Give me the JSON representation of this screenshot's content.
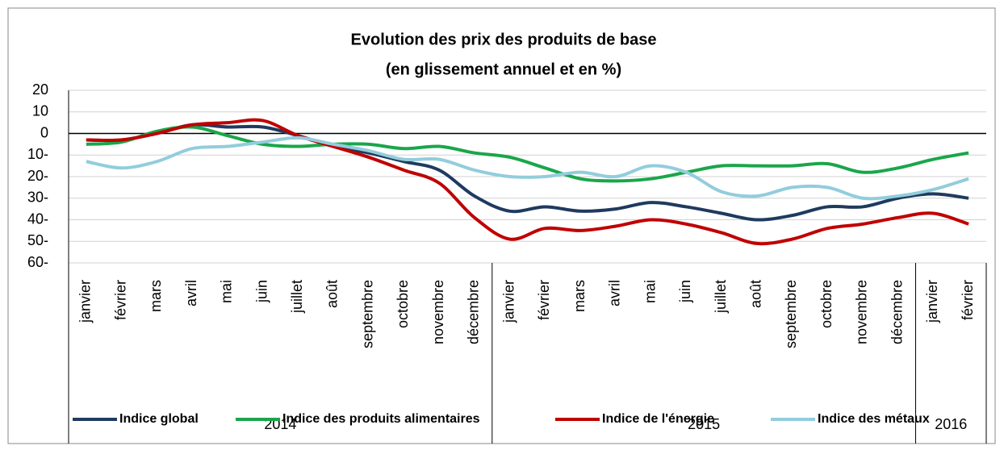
{
  "chart_data": {
    "type": "line",
    "title": "Evolution des prix des produits de base",
    "subtitle": "(en glissement annuel et en %)",
    "categories": [
      "janvier",
      "février",
      "mars",
      "avril",
      "mai",
      "juin",
      "juillet",
      "août",
      "septembre",
      "octobre",
      "novembre",
      "décembre",
      "janvier",
      "février",
      "mars",
      "avril",
      "mai",
      "juin",
      "juillet",
      "août",
      "septembre",
      "octobre",
      "novembre",
      "décembre",
      "janvier",
      "février"
    ],
    "x_groups": [
      {
        "label": "2014",
        "span": 12
      },
      {
        "label": "2015",
        "span": 12
      },
      {
        "label": "2016",
        "span": 2
      }
    ],
    "series": [
      {
        "name": "Indice global",
        "color": "#1f3a5f",
        "values": [
          -3,
          -3,
          0,
          4,
          3,
          3,
          -1,
          -6,
          -9,
          -13,
          -17,
          -29,
          -36,
          -34,
          -36,
          -35,
          -32,
          -34,
          -37,
          -40,
          -38,
          -34,
          -34,
          -30,
          -28,
          -30
        ]
      },
      {
        "name": "Indice des produits alimentaires",
        "color": "#1aa64a",
        "values": [
          -5,
          -4,
          1,
          3,
          -1,
          -5,
          -6,
          -5,
          -5,
          -7,
          -6,
          -9,
          -11,
          -16,
          -21,
          -22,
          -21,
          -18,
          -15,
          -15,
          -15,
          -14,
          -18,
          -16,
          -12,
          -9
        ]
      },
      {
        "name": "Indice de l'énergie",
        "color": "#c00000",
        "values": [
          -3,
          -3,
          0,
          4,
          5,
          6,
          -1,
          -6,
          -11,
          -17,
          -23,
          -39,
          -49,
          -44,
          -45,
          -43,
          -40,
          -42,
          -46,
          -51,
          -49,
          -44,
          -42,
          -39,
          -37,
          -42
        ]
      },
      {
        "name": "Indice des métaux",
        "color": "#92cddc",
        "values": [
          -13,
          -16,
          -13,
          -7,
          -6,
          -4,
          -2,
          -5,
          -8,
          -12,
          -12,
          -17,
          -20,
          -20,
          -18,
          -20,
          -15,
          -18,
          -27,
          -29,
          -25,
          -25,
          -30,
          -29,
          -26,
          -21
        ]
      }
    ],
    "ylim": [
      -60,
      20
    ],
    "yticks": [
      20,
      10,
      0,
      {
        "value": -10,
        "label": "10-"
      },
      {
        "value": -20,
        "label": "20-"
      },
      {
        "value": -30,
        "label": "30-"
      },
      {
        "value": -40,
        "label": "40-"
      },
      {
        "value": -50,
        "label": "50-"
      },
      {
        "value": -60,
        "label": "60-"
      }
    ],
    "grid": true,
    "legend": "bottom"
  }
}
